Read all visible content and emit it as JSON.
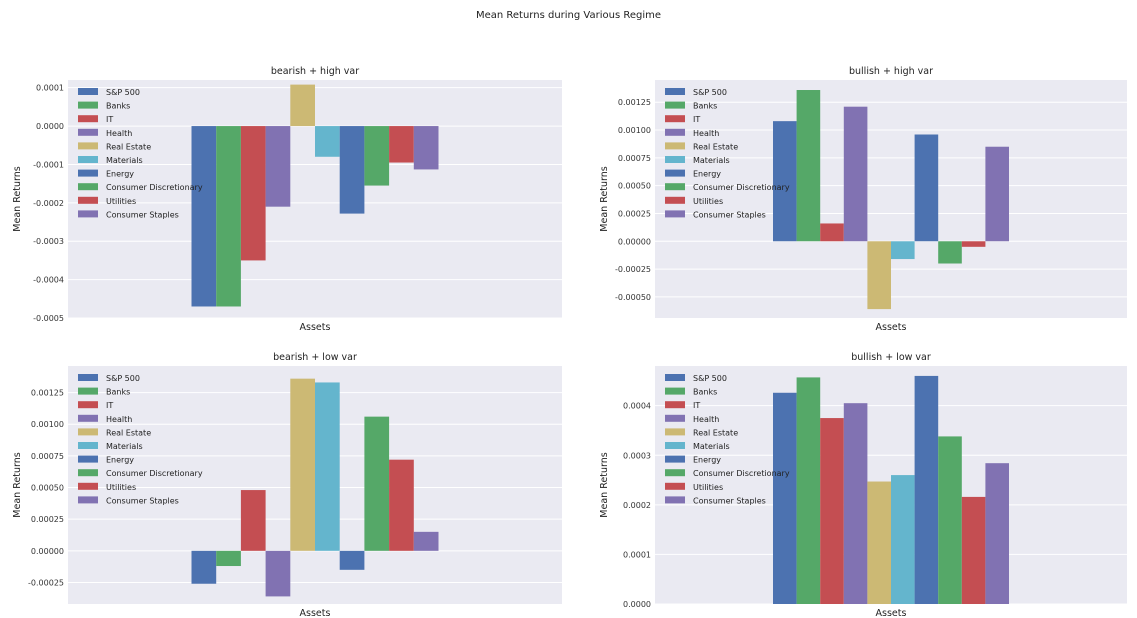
{
  "figure": {
    "suptitle": "Mean Returns during Various Regime"
  },
  "colors": {
    "S&P 500": "#4c72b0",
    "Banks": "#55a868",
    "IT": "#c44e52",
    "Health": "#8172b2",
    "Real Estate": "#ccb974",
    "Materials": "#64b5cd",
    "Energy": "#4c72b0",
    "Consumer Discretionary": "#55a868",
    "Utilities": "#c44e52",
    "Consumer Staples": "#8172b2",
    "panel_bg": "#eaeaf2",
    "grid": "#ffffff"
  },
  "chart_data": [
    {
      "type": "bar",
      "title": "bearish + high var",
      "xlabel": "Assets",
      "ylabel": "Mean Returns",
      "legend_position": "upper-left",
      "ylim": [
        -0.0005,
        0.00012
      ],
      "yticks": [
        -0.0005,
        -0.0004,
        -0.0003,
        -0.0002,
        -0.0001,
        0.0,
        0.0001
      ],
      "ytick_labels": [
        "-0.0005",
        "-0.0004",
        "-0.0003",
        "-0.0002",
        "-0.0001",
        "0.0000",
        "0.0001"
      ],
      "series": [
        {
          "name": "S&P 500",
          "value": -0.00047
        },
        {
          "name": "Banks",
          "value": -0.00047
        },
        {
          "name": "IT",
          "value": -0.00035
        },
        {
          "name": "Health",
          "value": -0.00021
        },
        {
          "name": "Real Estate",
          "value": 0.000108
        },
        {
          "name": "Materials",
          "value": -8e-05
        },
        {
          "name": "Energy",
          "value": -0.000228
        },
        {
          "name": "Consumer Discretionary",
          "value": -0.000155
        },
        {
          "name": "Utilities",
          "value": -9.5e-05
        },
        {
          "name": "Consumer Staples",
          "value": -0.000113
        }
      ]
    },
    {
      "type": "bar",
      "title": "bullish + high var",
      "xlabel": "Assets",
      "ylabel": "Mean Returns",
      "legend_position": "upper-left",
      "ylim": [
        -0.00069,
        0.00145
      ],
      "yticks": [
        -0.0005,
        -0.00025,
        0.0,
        0.00025,
        0.0005,
        0.00075,
        0.001,
        0.00125
      ],
      "ytick_labels": [
        "-0.00050",
        "-0.00025",
        "0.00000",
        "0.00025",
        "0.00050",
        "0.00075",
        "0.00100",
        "0.00125"
      ],
      "series": [
        {
          "name": "S&P 500",
          "value": 0.00108
        },
        {
          "name": "Banks",
          "value": 0.00136
        },
        {
          "name": "IT",
          "value": 0.00016
        },
        {
          "name": "Health",
          "value": 0.00121
        },
        {
          "name": "Real Estate",
          "value": -0.00061
        },
        {
          "name": "Materials",
          "value": -0.00016
        },
        {
          "name": "Energy",
          "value": 0.00096
        },
        {
          "name": "Consumer Discretionary",
          "value": -0.0002
        },
        {
          "name": "Utilities",
          "value": -5e-05
        },
        {
          "name": "Consumer Staples",
          "value": 0.00085
        }
      ]
    },
    {
      "type": "bar",
      "title": "bearish + low var",
      "xlabel": "Assets",
      "ylabel": "Mean Returns",
      "legend_position": "upper-left",
      "ylim": [
        -0.00042,
        0.00146
      ],
      "yticks": [
        -0.00025,
        0.0,
        0.00025,
        0.0005,
        0.00075,
        0.001,
        0.00125
      ],
      "ytick_labels": [
        "-0.00025",
        "0.00000",
        "0.00025",
        "0.00050",
        "0.00075",
        "0.00100",
        "0.00125"
      ],
      "series": [
        {
          "name": "S&P 500",
          "value": -0.00026
        },
        {
          "name": "Banks",
          "value": -0.00012
        },
        {
          "name": "IT",
          "value": 0.00048
        },
        {
          "name": "Health",
          "value": -0.00036
        },
        {
          "name": "Real Estate",
          "value": 0.00136
        },
        {
          "name": "Materials",
          "value": 0.00133
        },
        {
          "name": "Energy",
          "value": -0.00015
        },
        {
          "name": "Consumer Discretionary",
          "value": 0.00106
        },
        {
          "name": "Utilities",
          "value": 0.00072
        },
        {
          "name": "Consumer Staples",
          "value": 0.00015
        }
      ]
    },
    {
      "type": "bar",
      "title": "bullish + low var",
      "xlabel": "Assets",
      "ylabel": "Mean Returns",
      "legend_position": "upper-left",
      "ylim": [
        0.0,
        0.00048
      ],
      "yticks": [
        0.0,
        0.0001,
        0.0002,
        0.0003,
        0.0004
      ],
      "ytick_labels": [
        "0.0000",
        "0.0001",
        "0.0002",
        "0.0003",
        "0.0004"
      ],
      "series": [
        {
          "name": "S&P 500",
          "value": 0.000426
        },
        {
          "name": "Banks",
          "value": 0.000457
        },
        {
          "name": "IT",
          "value": 0.000375
        },
        {
          "name": "Health",
          "value": 0.000405
        },
        {
          "name": "Real Estate",
          "value": 0.000247
        },
        {
          "name": "Materials",
          "value": 0.00026
        },
        {
          "name": "Energy",
          "value": 0.00046
        },
        {
          "name": "Consumer Discretionary",
          "value": 0.000338
        },
        {
          "name": "Utilities",
          "value": 0.000216
        },
        {
          "name": "Consumer Staples",
          "value": 0.000284
        }
      ]
    }
  ]
}
